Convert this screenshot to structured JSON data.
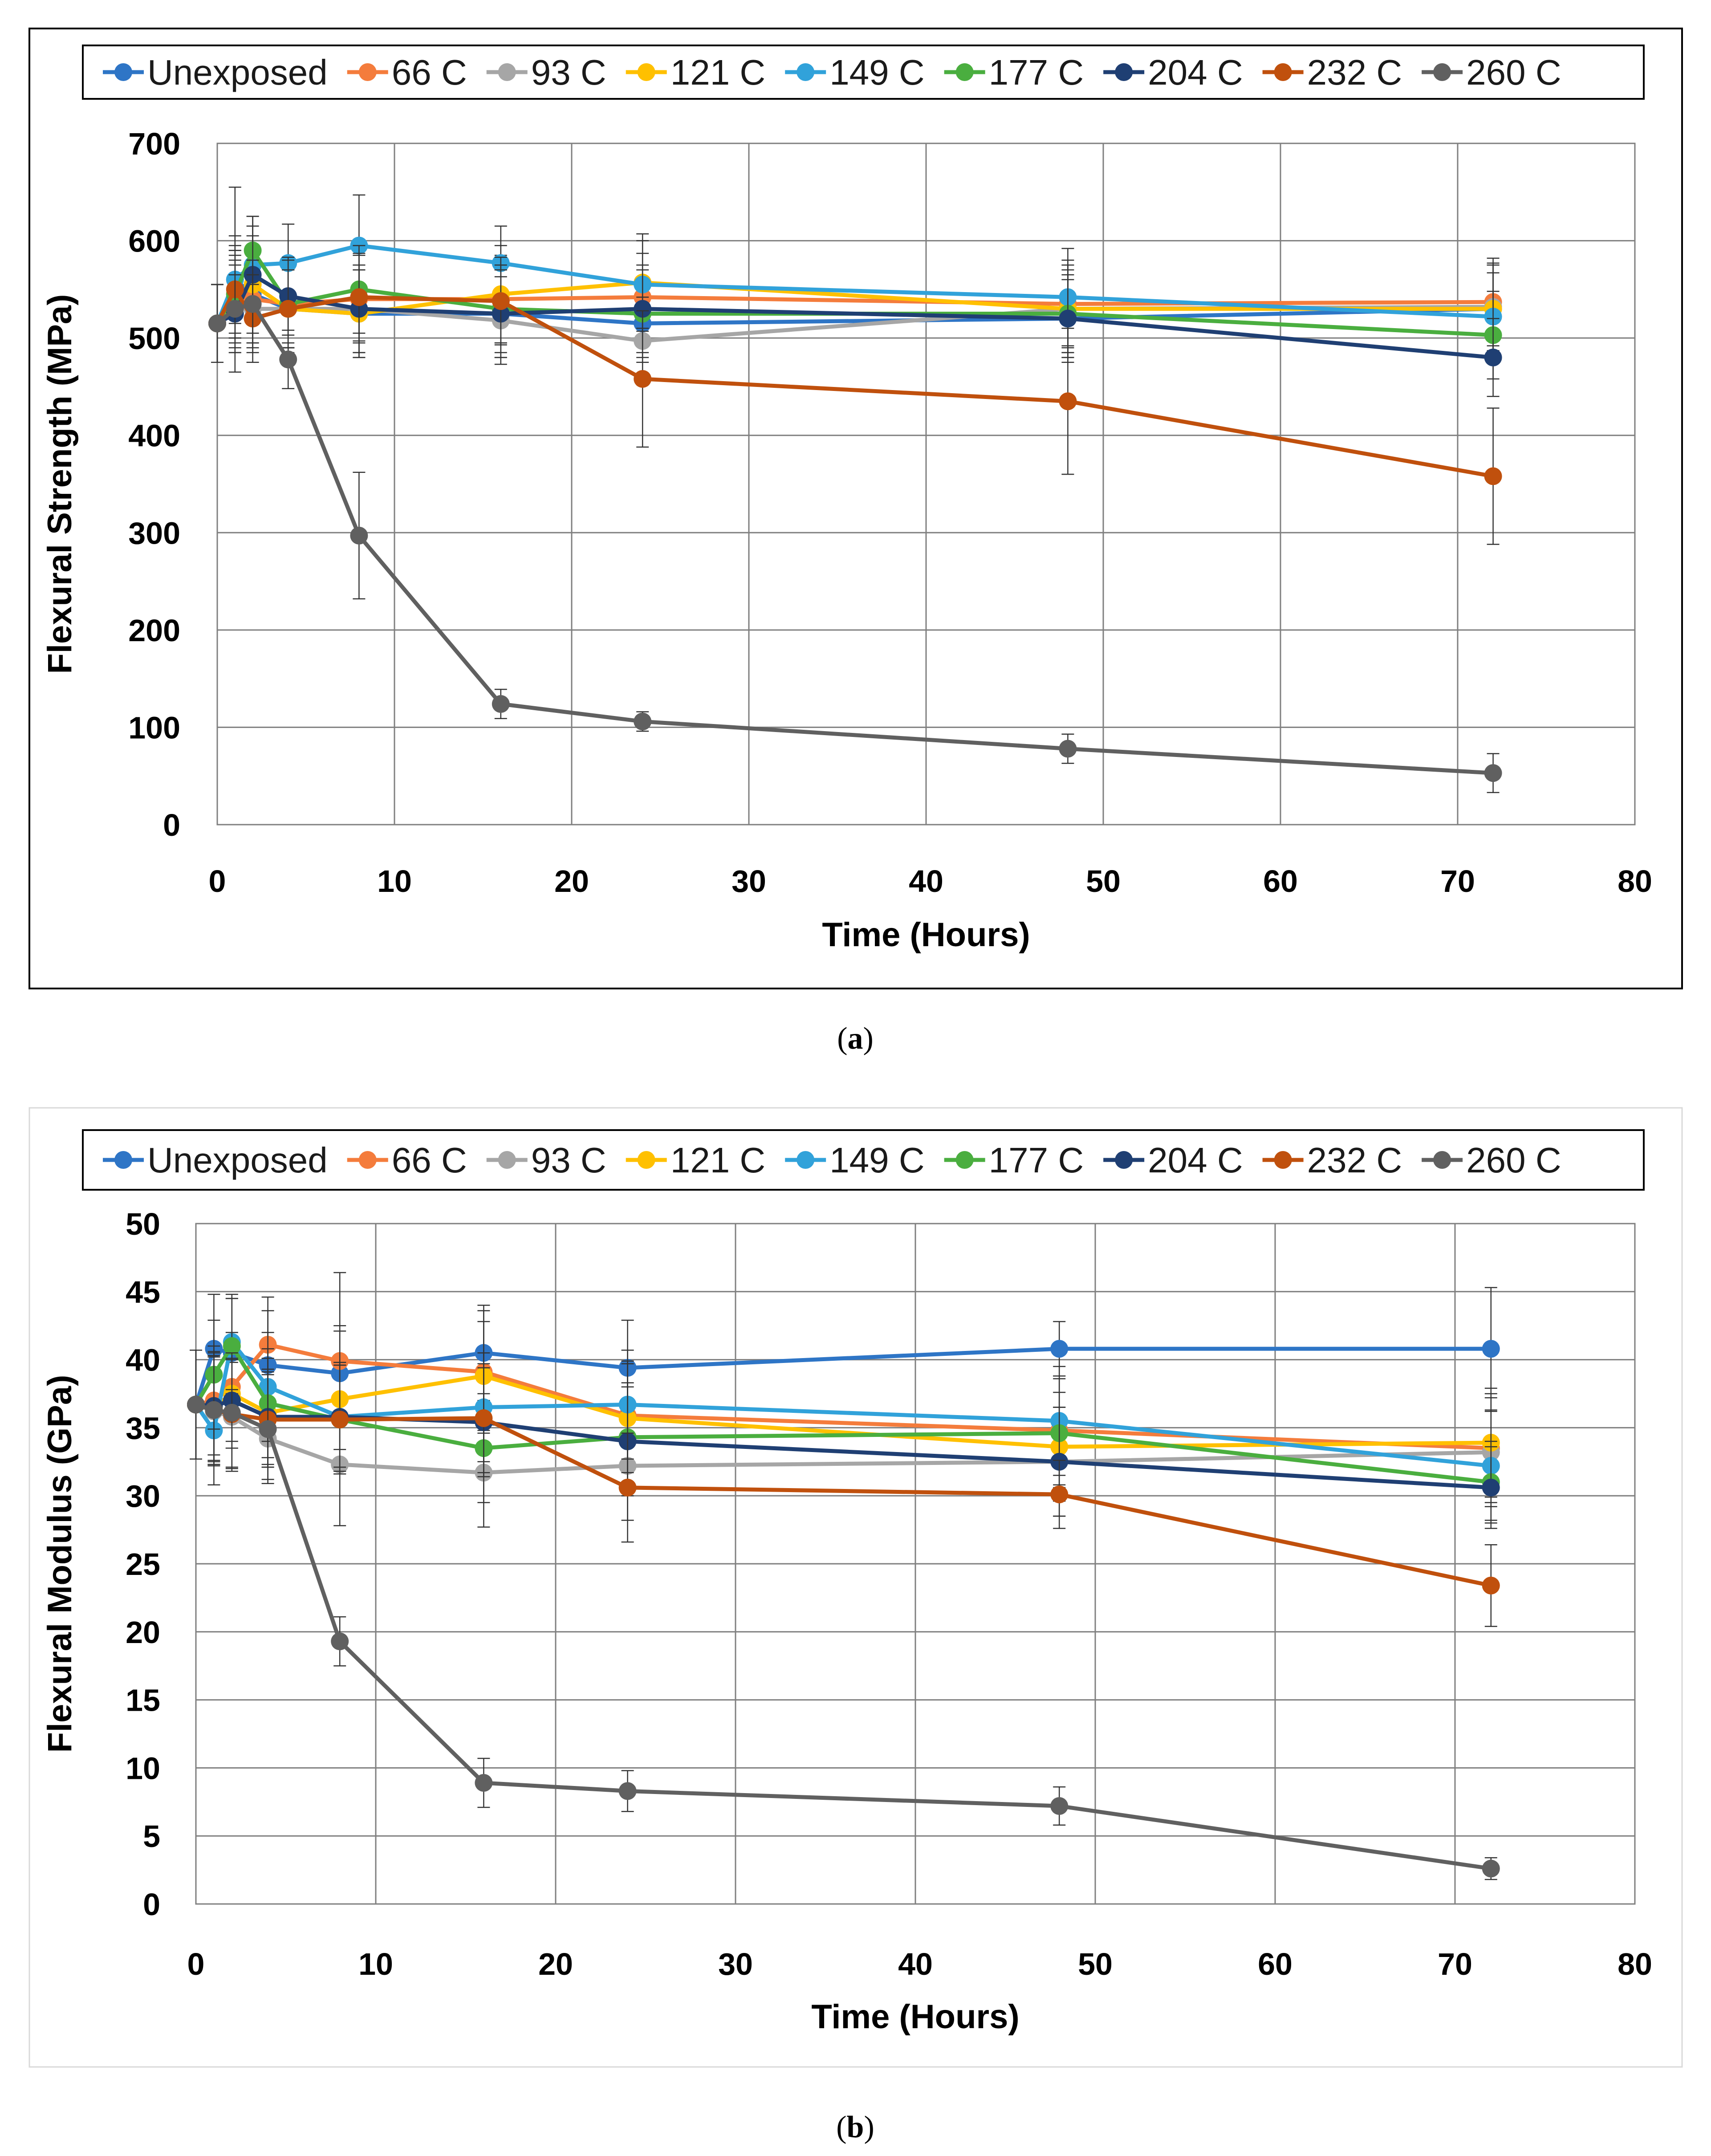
{
  "chart_data": [
    {
      "type": "line",
      "caption": "(a)",
      "caption_letter": "a",
      "xlabel": "Time (Hours)",
      "ylabel": "Flexural Strength (MPa)",
      "xlim": [
        0,
        80
      ],
      "xticks": [
        0,
        10,
        20,
        30,
        40,
        50,
        60,
        70,
        80
      ],
      "ylim": [
        0,
        700
      ],
      "yticks": [
        0,
        100,
        200,
        300,
        400,
        500,
        600,
        700
      ],
      "grid": true,
      "legend": "top",
      "series": [
        {
          "name": "Unexposed",
          "color": "#2E75C6",
          "x": [
            0,
            1,
            2,
            4,
            8,
            16,
            24,
            48,
            72
          ],
          "y": [
            515,
            560,
            545,
            530,
            525,
            525,
            515,
            520,
            530
          ],
          "err": [
            40,
            45,
            50,
            45,
            45,
            45,
            40,
            40,
            45
          ]
        },
        {
          "name": "66 C",
          "color": "#F47C3C",
          "x": [
            0,
            1,
            2,
            4,
            8,
            16,
            24,
            48,
            72
          ],
          "y": [
            515,
            545,
            540,
            535,
            540,
            540,
            542,
            535,
            537
          ],
          "err": [
            40,
            45,
            45,
            40,
            45,
            45,
            45,
            45,
            45
          ]
        },
        {
          "name": "93 C",
          "color": "#A6A6A6",
          "x": [
            0,
            1,
            2,
            4,
            8,
            16,
            24,
            48,
            72
          ],
          "y": [
            515,
            535,
            530,
            530,
            530,
            518,
            497,
            530,
            532
          ],
          "err": [
            40,
            45,
            45,
            40,
            45,
            45,
            45,
            45,
            45
          ]
        },
        {
          "name": "121 C",
          "color": "#FFC000",
          "x": [
            0,
            1,
            2,
            4,
            8,
            16,
            24,
            48,
            72
          ],
          "y": [
            515,
            540,
            555,
            530,
            525,
            545,
            557,
            530,
            530
          ],
          "err": [
            40,
            45,
            50,
            40,
            45,
            50,
            50,
            45,
            45
          ]
        },
        {
          "name": "149 C",
          "color": "#31A2DA",
          "x": [
            0,
            1,
            2,
            4,
            8,
            16,
            24,
            48,
            72
          ],
          "y": [
            515,
            560,
            575,
            577,
            595,
            577,
            555,
            542,
            522
          ],
          "err": [
            40,
            95,
            50,
            40,
            52,
            38,
            45,
            50,
            45
          ]
        },
        {
          "name": "177 C",
          "color": "#4AAE3F",
          "x": [
            0,
            1,
            2,
            4,
            8,
            16,
            24,
            48,
            72
          ],
          "y": [
            515,
            545,
            590,
            535,
            550,
            530,
            525,
            525,
            503
          ],
          "err": [
            40,
            45,
            35,
            45,
            45,
            45,
            45,
            45,
            45
          ]
        },
        {
          "name": "204 C",
          "color": "#1F3F73",
          "x": [
            0,
            1,
            2,
            4,
            8,
            16,
            24,
            48,
            72
          ],
          "y": [
            515,
            525,
            565,
            543,
            530,
            525,
            530,
            520,
            480
          ],
          "err": [
            40,
            40,
            50,
            40,
            45,
            45,
            45,
            45,
            40
          ]
        },
        {
          "name": "232 C",
          "color": "#C0500D",
          "x": [
            0,
            1,
            2,
            4,
            8,
            16,
            24,
            48,
            72
          ],
          "y": [
            515,
            550,
            520,
            530,
            542,
            538,
            458,
            435,
            358
          ],
          "err": [
            40,
            45,
            45,
            40,
            45,
            45,
            70,
            75,
            70
          ]
        },
        {
          "name": "260 C",
          "color": "#606060",
          "x": [
            0,
            1,
            2,
            4,
            8,
            16,
            24,
            48,
            72
          ],
          "y": [
            515,
            530,
            535,
            478,
            297,
            124,
            106,
            78,
            53
          ],
          "err": [
            40,
            45,
            45,
            30,
            65,
            15,
            10,
            15,
            20
          ]
        }
      ]
    },
    {
      "type": "line",
      "caption": "(b)",
      "caption_letter": "b",
      "xlabel": "Time (Hours)",
      "ylabel": "Flexural Modulus (GPa)",
      "xlim": [
        0,
        80
      ],
      "xticks": [
        0,
        10,
        20,
        30,
        40,
        50,
        60,
        70,
        80
      ],
      "ylim": [
        0,
        50
      ],
      "yticks": [
        0,
        5,
        10,
        15,
        20,
        25,
        30,
        35,
        40,
        45,
        50
      ],
      "grid": true,
      "legend": "top",
      "series": [
        {
          "name": "Unexposed",
          "color": "#2E75C6",
          "x": [
            0,
            1,
            2,
            4,
            8,
            16,
            24,
            48,
            72
          ],
          "y": [
            36.7,
            40.8,
            40.5,
            39.6,
            39.0,
            40.5,
            39.4,
            40.8,
            40.8
          ],
          "err": [
            4,
            4,
            4,
            4,
            3.5,
            3.5,
            3.5,
            2,
            4.5
          ]
        },
        {
          "name": "66 C",
          "color": "#F47C3C",
          "x": [
            0,
            1,
            2,
            4,
            8,
            16,
            24,
            48,
            72
          ],
          "y": [
            36.7,
            37,
            38,
            41.1,
            39.9,
            39.1,
            35.9,
            34.8,
            33.5
          ],
          "err": [
            4,
            4,
            4,
            3.5,
            6.5,
            4.5,
            4,
            4,
            4
          ]
        },
        {
          "name": "93 C",
          "color": "#A6A6A6",
          "x": [
            0,
            1,
            2,
            4,
            8,
            16,
            24,
            48,
            72
          ],
          "y": [
            36.7,
            36.2,
            35.8,
            34.2,
            32.3,
            31.7,
            32.2,
            32.5,
            33.2
          ],
          "err": [
            4,
            4,
            4,
            3,
            4.5,
            4,
            4,
            4,
            4
          ]
        },
        {
          "name": "121 C",
          "color": "#FFC000",
          "x": [
            0,
            1,
            2,
            4,
            8,
            16,
            24,
            48,
            72
          ],
          "y": [
            36.7,
            36.5,
            37.5,
            36.1,
            37.1,
            38.8,
            35.7,
            33.6,
            33.9
          ],
          "err": [
            4,
            4,
            4,
            4,
            5,
            4,
            4,
            4,
            4
          ]
        },
        {
          "name": "149 C",
          "color": "#31A2DA",
          "x": [
            0,
            1,
            2,
            4,
            8,
            16,
            24,
            48,
            72
          ],
          "y": [
            36.7,
            34.8,
            41.3,
            38.0,
            35.8,
            36.5,
            36.7,
            35.5,
            32.2
          ],
          "err": [
            4,
            4,
            3.5,
            4,
            4,
            4,
            4,
            4,
            4
          ]
        },
        {
          "name": "177 C",
          "color": "#4AAE3F",
          "x": [
            0,
            1,
            2,
            4,
            8,
            16,
            24,
            48,
            72
          ],
          "y": [
            36.7,
            38.9,
            41.0,
            36.8,
            35.6,
            33.5,
            34.3,
            34.6,
            31.0
          ],
          "err": [
            4,
            4,
            3.5,
            4,
            4,
            4,
            4,
            4,
            3
          ]
        },
        {
          "name": "204 C",
          "color": "#1F3F73",
          "x": [
            0,
            1,
            2,
            4,
            8,
            16,
            24,
            48,
            72
          ],
          "y": [
            36.7,
            36.6,
            37.0,
            35.8,
            35.8,
            35.4,
            34.0,
            32.5,
            30.6
          ],
          "err": [
            4,
            4,
            3.5,
            3.5,
            4,
            4,
            4,
            4,
            3
          ]
        },
        {
          "name": "232 C",
          "color": "#C0500D",
          "x": [
            0,
            1,
            2,
            4,
            8,
            16,
            24,
            48,
            72
          ],
          "y": [
            36.7,
            36.3,
            36.0,
            35.6,
            35.6,
            35.7,
            30.6,
            30.1,
            23.4
          ],
          "err": [
            4,
            4,
            4,
            3.5,
            4,
            4,
            4,
            2.5,
            3
          ]
        },
        {
          "name": "260 C",
          "color": "#606060",
          "x": [
            0,
            1,
            2,
            4,
            8,
            16,
            24,
            48,
            72
          ],
          "y": [
            36.7,
            36.3,
            36.1,
            34.9,
            19.3,
            8.9,
            8.3,
            7.2,
            2.6
          ],
          "err": [
            4,
            4,
            4,
            4,
            1.8,
            1.8,
            1.5,
            1.4,
            0.8
          ]
        }
      ]
    }
  ]
}
